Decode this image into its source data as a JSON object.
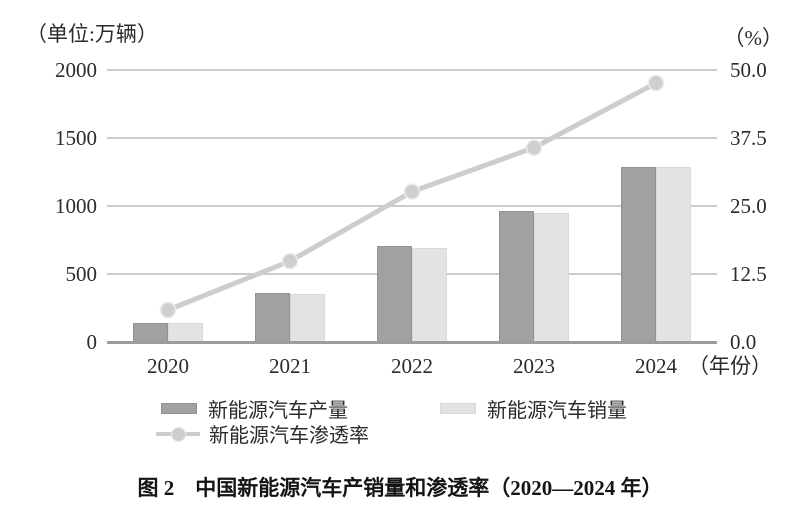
{
  "chart_data": {
    "type": "bar",
    "subtype": "grouped-bars-with-line-overlay",
    "categories": [
      "2020",
      "2021",
      "2022",
      "2023",
      "2024"
    ],
    "series": [
      {
        "name": "新能源汽车产量",
        "type": "bar",
        "axis": "left",
        "values": [
          136.6,
          354.5,
          705.8,
          958.7,
          1288.8
        ],
        "color": "#a1a1a1"
      },
      {
        "name": "新能源汽车销量",
        "type": "bar",
        "axis": "left",
        "values": [
          136.7,
          352.1,
          688.7,
          949.5,
          1286.6
        ],
        "color": "#e3e3e3"
      },
      {
        "name": "新能源汽车渗透率",
        "type": "line",
        "axis": "right",
        "values": [
          5.8,
          14.8,
          27.6,
          35.7,
          47.6
        ],
        "color": "#cdcdcd"
      }
    ],
    "left_axis": {
      "unit_label": "（单位:万辆）",
      "min": 0,
      "max": 2000,
      "ticks": [
        "2000",
        "1500",
        "1000",
        "500",
        "0"
      ]
    },
    "right_axis": {
      "unit_label": "（%）",
      "min": 0,
      "max": 50,
      "ticks": [
        "50.0",
        "37.5",
        "25.0",
        "12.5",
        "0.0"
      ]
    },
    "x_axis": {
      "labels": [
        "2020",
        "2021",
        "2022",
        "2023",
        "2024"
      ],
      "suffix_label": "（年份）"
    },
    "grid": "horizontal-only",
    "legend_position": "bottom",
    "caption": "图 2　中国新能源汽车产销量和渗透率（2020—2024 年）",
    "colors": {
      "production_bar": "#a1a1a1",
      "sales_bar": "#e3e3e3",
      "penetration_line": "#cdcdcd",
      "gridline": "#cbcbcb",
      "baseline": "#9c9c9c",
      "text": "#2e2a2a"
    }
  }
}
